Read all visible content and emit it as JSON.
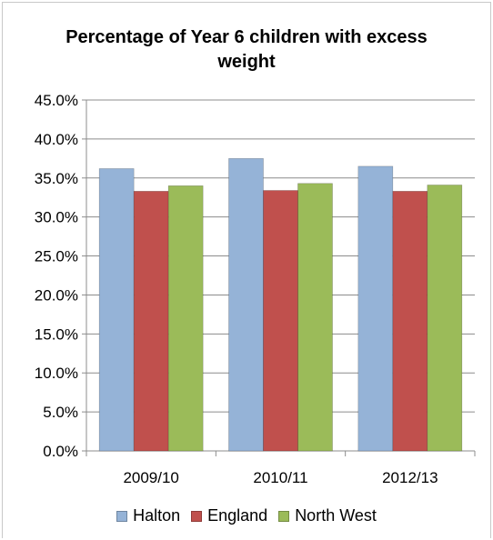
{
  "chart_data": {
    "type": "bar",
    "title": "Percentage of Year 6 children with excess weight",
    "xlabel": "",
    "ylabel": "",
    "categories": [
      "2009/10",
      "2010/11",
      "2012/13"
    ],
    "series": [
      {
        "name": "Halton",
        "values": [
          36.2,
          37.5,
          36.5
        ],
        "color": "#95b3d7"
      },
      {
        "name": "England",
        "values": [
          33.3,
          33.4,
          33.3
        ],
        "color": "#c0504d"
      },
      {
        "name": "North West",
        "values": [
          34.0,
          34.3,
          34.1
        ],
        "color": "#9bbb59"
      }
    ],
    "ylim": [
      0,
      45
    ],
    "yticks": [
      0,
      5,
      10,
      15,
      20,
      25,
      30,
      35,
      40,
      45
    ],
    "ytick_labels": [
      "0.0%",
      "5.0%",
      "10.0%",
      "15.0%",
      "20.0%",
      "25.0%",
      "30.0%",
      "35.0%",
      "40.0%",
      "45.0%"
    ],
    "grid": true,
    "legend_position": "bottom"
  }
}
